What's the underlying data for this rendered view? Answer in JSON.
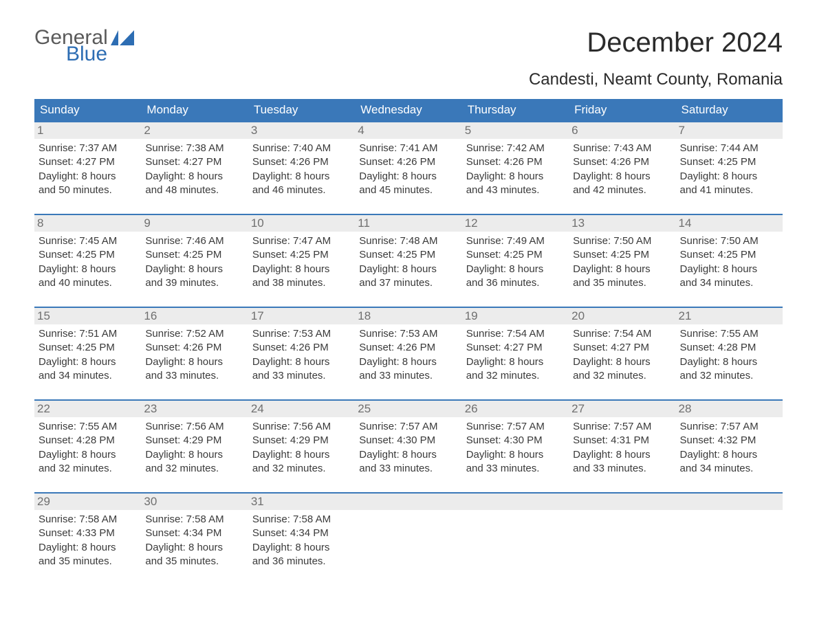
{
  "logo": {
    "text1": "General",
    "text2": "Blue"
  },
  "title": "December 2024",
  "subtitle": "Candesti, Neamt County, Romania",
  "colors": {
    "header_bg": "#3a78b9",
    "header_text": "#ffffff",
    "daynum_bg": "#ececec",
    "daynum_text": "#6f6f6f",
    "body_text": "#3a3a3a",
    "week_border": "#3a78b9",
    "logo_gray": "#5a5a5a",
    "logo_blue": "#2d6db3",
    "page_bg": "#ffffff"
  },
  "dow": [
    "Sunday",
    "Monday",
    "Tuesday",
    "Wednesday",
    "Thursday",
    "Friday",
    "Saturday"
  ],
  "weeks": [
    [
      {
        "n": "1",
        "sr": "Sunrise: 7:37 AM",
        "ss": "Sunset: 4:27 PM",
        "d1": "Daylight: 8 hours",
        "d2": "and 50 minutes."
      },
      {
        "n": "2",
        "sr": "Sunrise: 7:38 AM",
        "ss": "Sunset: 4:27 PM",
        "d1": "Daylight: 8 hours",
        "d2": "and 48 minutes."
      },
      {
        "n": "3",
        "sr": "Sunrise: 7:40 AM",
        "ss": "Sunset: 4:26 PM",
        "d1": "Daylight: 8 hours",
        "d2": "and 46 minutes."
      },
      {
        "n": "4",
        "sr": "Sunrise: 7:41 AM",
        "ss": "Sunset: 4:26 PM",
        "d1": "Daylight: 8 hours",
        "d2": "and 45 minutes."
      },
      {
        "n": "5",
        "sr": "Sunrise: 7:42 AM",
        "ss": "Sunset: 4:26 PM",
        "d1": "Daylight: 8 hours",
        "d2": "and 43 minutes."
      },
      {
        "n": "6",
        "sr": "Sunrise: 7:43 AM",
        "ss": "Sunset: 4:26 PM",
        "d1": "Daylight: 8 hours",
        "d2": "and 42 minutes."
      },
      {
        "n": "7",
        "sr": "Sunrise: 7:44 AM",
        "ss": "Sunset: 4:25 PM",
        "d1": "Daylight: 8 hours",
        "d2": "and 41 minutes."
      }
    ],
    [
      {
        "n": "8",
        "sr": "Sunrise: 7:45 AM",
        "ss": "Sunset: 4:25 PM",
        "d1": "Daylight: 8 hours",
        "d2": "and 40 minutes."
      },
      {
        "n": "9",
        "sr": "Sunrise: 7:46 AM",
        "ss": "Sunset: 4:25 PM",
        "d1": "Daylight: 8 hours",
        "d2": "and 39 minutes."
      },
      {
        "n": "10",
        "sr": "Sunrise: 7:47 AM",
        "ss": "Sunset: 4:25 PM",
        "d1": "Daylight: 8 hours",
        "d2": "and 38 minutes."
      },
      {
        "n": "11",
        "sr": "Sunrise: 7:48 AM",
        "ss": "Sunset: 4:25 PM",
        "d1": "Daylight: 8 hours",
        "d2": "and 37 minutes."
      },
      {
        "n": "12",
        "sr": "Sunrise: 7:49 AM",
        "ss": "Sunset: 4:25 PM",
        "d1": "Daylight: 8 hours",
        "d2": "and 36 minutes."
      },
      {
        "n": "13",
        "sr": "Sunrise: 7:50 AM",
        "ss": "Sunset: 4:25 PM",
        "d1": "Daylight: 8 hours",
        "d2": "and 35 minutes."
      },
      {
        "n": "14",
        "sr": "Sunrise: 7:50 AM",
        "ss": "Sunset: 4:25 PM",
        "d1": "Daylight: 8 hours",
        "d2": "and 34 minutes."
      }
    ],
    [
      {
        "n": "15",
        "sr": "Sunrise: 7:51 AM",
        "ss": "Sunset: 4:25 PM",
        "d1": "Daylight: 8 hours",
        "d2": "and 34 minutes."
      },
      {
        "n": "16",
        "sr": "Sunrise: 7:52 AM",
        "ss": "Sunset: 4:26 PM",
        "d1": "Daylight: 8 hours",
        "d2": "and 33 minutes."
      },
      {
        "n": "17",
        "sr": "Sunrise: 7:53 AM",
        "ss": "Sunset: 4:26 PM",
        "d1": "Daylight: 8 hours",
        "d2": "and 33 minutes."
      },
      {
        "n": "18",
        "sr": "Sunrise: 7:53 AM",
        "ss": "Sunset: 4:26 PM",
        "d1": "Daylight: 8 hours",
        "d2": "and 33 minutes."
      },
      {
        "n": "19",
        "sr": "Sunrise: 7:54 AM",
        "ss": "Sunset: 4:27 PM",
        "d1": "Daylight: 8 hours",
        "d2": "and 32 minutes."
      },
      {
        "n": "20",
        "sr": "Sunrise: 7:54 AM",
        "ss": "Sunset: 4:27 PM",
        "d1": "Daylight: 8 hours",
        "d2": "and 32 minutes."
      },
      {
        "n": "21",
        "sr": "Sunrise: 7:55 AM",
        "ss": "Sunset: 4:28 PM",
        "d1": "Daylight: 8 hours",
        "d2": "and 32 minutes."
      }
    ],
    [
      {
        "n": "22",
        "sr": "Sunrise: 7:55 AM",
        "ss": "Sunset: 4:28 PM",
        "d1": "Daylight: 8 hours",
        "d2": "and 32 minutes."
      },
      {
        "n": "23",
        "sr": "Sunrise: 7:56 AM",
        "ss": "Sunset: 4:29 PM",
        "d1": "Daylight: 8 hours",
        "d2": "and 32 minutes."
      },
      {
        "n": "24",
        "sr": "Sunrise: 7:56 AM",
        "ss": "Sunset: 4:29 PM",
        "d1": "Daylight: 8 hours",
        "d2": "and 32 minutes."
      },
      {
        "n": "25",
        "sr": "Sunrise: 7:57 AM",
        "ss": "Sunset: 4:30 PM",
        "d1": "Daylight: 8 hours",
        "d2": "and 33 minutes."
      },
      {
        "n": "26",
        "sr": "Sunrise: 7:57 AM",
        "ss": "Sunset: 4:30 PM",
        "d1": "Daylight: 8 hours",
        "d2": "and 33 minutes."
      },
      {
        "n": "27",
        "sr": "Sunrise: 7:57 AM",
        "ss": "Sunset: 4:31 PM",
        "d1": "Daylight: 8 hours",
        "d2": "and 33 minutes."
      },
      {
        "n": "28",
        "sr": "Sunrise: 7:57 AM",
        "ss": "Sunset: 4:32 PM",
        "d1": "Daylight: 8 hours",
        "d2": "and 34 minutes."
      }
    ],
    [
      {
        "n": "29",
        "sr": "Sunrise: 7:58 AM",
        "ss": "Sunset: 4:33 PM",
        "d1": "Daylight: 8 hours",
        "d2": "and 35 minutes."
      },
      {
        "n": "30",
        "sr": "Sunrise: 7:58 AM",
        "ss": "Sunset: 4:34 PM",
        "d1": "Daylight: 8 hours",
        "d2": "and 35 minutes."
      },
      {
        "n": "31",
        "sr": "Sunrise: 7:58 AM",
        "ss": "Sunset: 4:34 PM",
        "d1": "Daylight: 8 hours",
        "d2": "and 36 minutes."
      },
      {
        "n": "",
        "sr": "",
        "ss": "",
        "d1": "",
        "d2": ""
      },
      {
        "n": "",
        "sr": "",
        "ss": "",
        "d1": "",
        "d2": ""
      },
      {
        "n": "",
        "sr": "",
        "ss": "",
        "d1": "",
        "d2": ""
      },
      {
        "n": "",
        "sr": "",
        "ss": "",
        "d1": "",
        "d2": ""
      }
    ]
  ]
}
